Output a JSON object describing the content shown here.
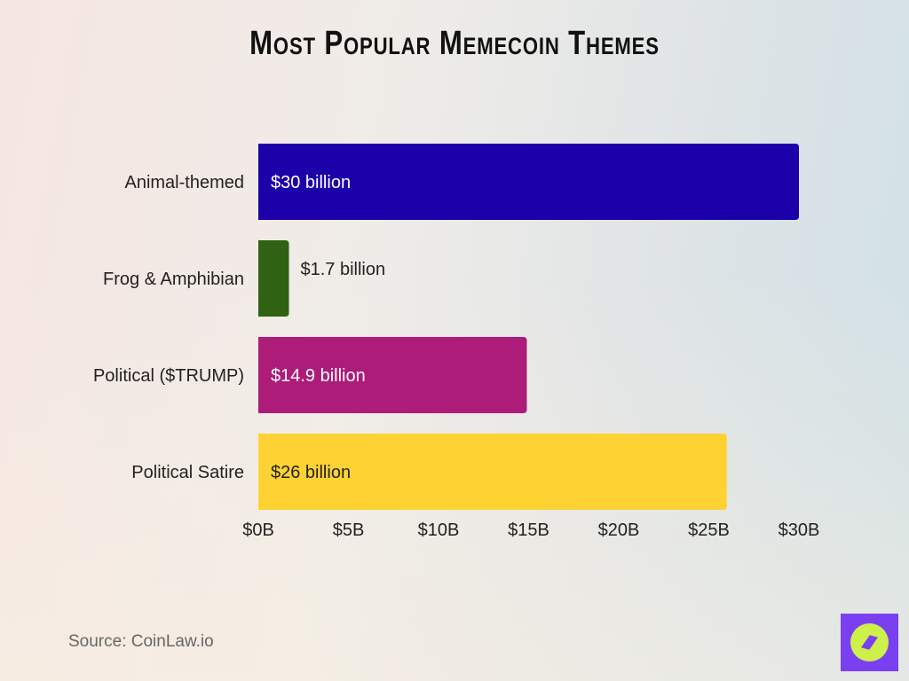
{
  "chart_data": {
    "type": "bar",
    "orientation": "horizontal",
    "title": "Most Popular Memecoin Themes",
    "categories": [
      "Animal-themed",
      "Frog & Amphibian",
      "Political ($TRUMP)",
      "Political Satire"
    ],
    "values": [
      30,
      1.7,
      14.9,
      26
    ],
    "data_labels": [
      "$30 billion",
      "$1.7 billion",
      "$14.9 billion",
      "$26 billion"
    ],
    "colors": [
      "#1c00aa",
      "#2f6212",
      "#ac1c78",
      "#ffd233"
    ],
    "label_colors": [
      "#ffffff",
      "#222222",
      "#ffffff",
      "#222222"
    ],
    "xlim": [
      0,
      30
    ],
    "x_ticks": [
      0,
      5,
      10,
      15,
      20,
      25,
      30
    ],
    "x_tick_labels": [
      "$0B",
      "$5B",
      "$10B",
      "$15B",
      "$20B",
      "$25B",
      "$30B"
    ],
    "xlabel": "",
    "ylabel": "",
    "grid": false
  },
  "source": "Source: CoinLaw.io",
  "logo": {
    "icon": "compass-icon",
    "bg": "#7b3ff2",
    "fg": "#cdf04a"
  }
}
